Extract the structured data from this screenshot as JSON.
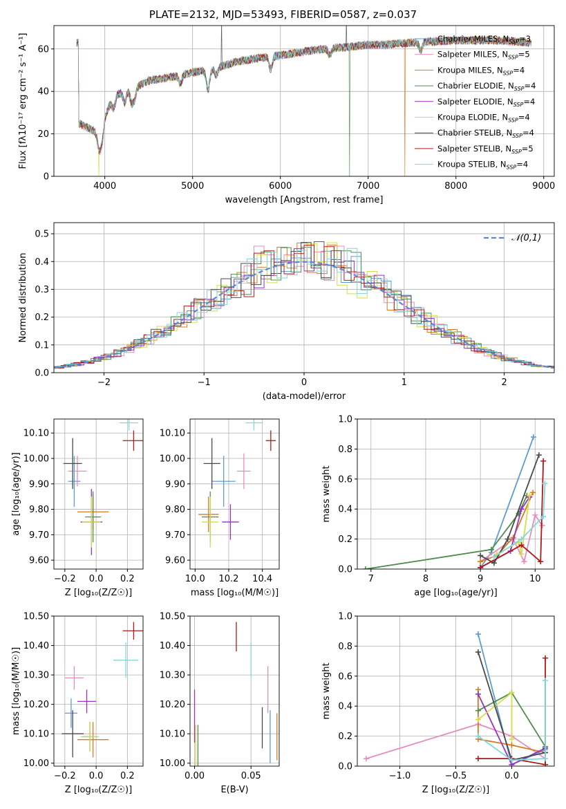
{
  "title": "PLATE=2132, MJD=53493, FIBERID=0587, z=0.037",
  "colors": {
    "Chabrier MILES": "#5b9bd5",
    "Salpeter MILES": "#e88cbf",
    "Kroupa MILES": "#d87a1e",
    "Chabrier ELODIE": "#4e8c4e",
    "Salpeter ELODIE": "#9a2fc4",
    "Kroupa ELODIE": "#d4dc4a",
    "Chabrier STELIB": "#4a4a4a",
    "Salpeter STELIB": "#b01818",
    "Kroupa STELIB": "#7fd8dc"
  },
  "models": [
    {
      "name": "Chabrier MILES",
      "nssp": "3"
    },
    {
      "name": "Salpeter MILES",
      "nssp": "5"
    },
    {
      "name": "Kroupa MILES",
      "nssp": "4"
    },
    {
      "name": "Chabrier ELODIE",
      "nssp": "4"
    },
    {
      "name": "Salpeter ELODIE",
      "nssp": "4"
    },
    {
      "name": "Kroupa ELODIE",
      "nssp": "4"
    },
    {
      "name": "Chabrier STELIB",
      "nssp": "4"
    },
    {
      "name": "Salpeter STELIB",
      "nssp": "5"
    },
    {
      "name": "Kroupa STELIB",
      "nssp": "4"
    }
  ],
  "chart_data": [
    {
      "id": "spectrum",
      "type": "line",
      "xlabel": "wavelength [Angstrom, rest frame]",
      "ylabel": "Flux [fλ10⁻¹⁷ erg cm⁻² s⁻¹ A⁻¹]",
      "xlim": [
        3420,
        9120
      ],
      "ylim": [
        0,
        71
      ],
      "xticks": [
        4000,
        5000,
        6000,
        7000,
        8000,
        9000
      ],
      "yticks": [
        0,
        20,
        40,
        60
      ],
      "continuum": [
        [
          3700,
          25
        ],
        [
          3900,
          21
        ],
        [
          4000,
          28
        ],
        [
          4100,
          38
        ],
        [
          4300,
          41
        ],
        [
          4500,
          45
        ],
        [
          4800,
          47
        ],
        [
          5000,
          49
        ],
        [
          5200,
          50
        ],
        [
          5500,
          54
        ],
        [
          5800,
          56
        ],
        [
          6000,
          57
        ],
        [
          6300,
          59
        ],
        [
          6500,
          60
        ],
        [
          6800,
          61
        ],
        [
          7000,
          62
        ],
        [
          7200,
          62
        ],
        [
          7500,
          63
        ],
        [
          8000,
          64
        ],
        [
          8500,
          64
        ],
        [
          8850,
          63
        ]
      ],
      "legend_position": "upper right"
    },
    {
      "id": "residuals",
      "type": "line",
      "xlabel": "(data-model)/error",
      "ylabel": "Normed distribution",
      "xlim": [
        -2.5,
        2.5
      ],
      "ylim": [
        0,
        0.54
      ],
      "xticks": [
        -2,
        -1,
        0,
        1,
        2
      ],
      "yticks": [
        0.0,
        0.1,
        0.2,
        0.3,
        0.4,
        0.5
      ],
      "reference": {
        "name": "𝒩(0,1)",
        "mean": 0,
        "sigma": 1
      },
      "legend_position": "upper right"
    },
    {
      "id": "age_vs_Z",
      "type": "scatter",
      "xlabel": "Z [log₁₀(Z/Z☉)]",
      "ylabel": "age  [log₁₀(age/yr)]",
      "xlim": [
        -0.27,
        0.3
      ],
      "ylim": [
        9.565,
        10.155
      ],
      "xticks": [
        -0.2,
        0.0,
        0.2
      ],
      "yticks": [
        9.6,
        9.7,
        9.8,
        9.9,
        10.0,
        10.1
      ],
      "points": [
        {
          "model": "Chabrier MILES",
          "x": -0.14,
          "y": 9.91,
          "xerr": 0.04,
          "yerr": 0.1
        },
        {
          "model": "Salpeter MILES",
          "x": -0.12,
          "y": 9.95,
          "xerr": 0.06,
          "yerr": 0.06
        },
        {
          "model": "Kroupa MILES",
          "x": -0.02,
          "y": 9.79,
          "xerr": 0.1,
          "yerr": 0.07
        },
        {
          "model": "Chabrier ELODIE",
          "x": -0.02,
          "y": 9.77,
          "xerr": 0.05,
          "yerr": 0.1
        },
        {
          "model": "Salpeter ELODIE",
          "x": -0.03,
          "y": 9.75,
          "xerr": 0.07,
          "yerr": 0.13
        },
        {
          "model": "Kroupa ELODIE",
          "x": -0.03,
          "y": 9.75,
          "xerr": 0.06,
          "yerr": 0.1
        },
        {
          "model": "Chabrier STELIB",
          "x": -0.15,
          "y": 9.98,
          "xerr": 0.06,
          "yerr": 0.1
        },
        {
          "model": "Salpeter STELIB",
          "x": 0.24,
          "y": 10.07,
          "xerr": 0.07,
          "yerr": 0.04
        },
        {
          "model": "Kroupa STELIB",
          "x": 0.21,
          "y": 10.14,
          "xerr": 0.06,
          "yerr": 0.03
        }
      ]
    },
    {
      "id": "age_vs_mass",
      "type": "scatter",
      "xlabel": "mass [log₁₀(M/M☉)]",
      "ylabel": "",
      "xlim": [
        9.97,
        10.5
      ],
      "ylim": [
        9.565,
        10.155
      ],
      "xticks": [
        10.0,
        10.2,
        10.4
      ],
      "yticks": [
        9.6,
        9.7,
        9.8,
        9.9,
        10.0,
        10.1
      ],
      "points": [
        {
          "model": "Chabrier MILES",
          "x": 10.17,
          "y": 9.91,
          "xerr": 0.07,
          "yerr": 0.1
        },
        {
          "model": "Salpeter MILES",
          "x": 10.29,
          "y": 9.95,
          "xerr": 0.04,
          "yerr": 0.07
        },
        {
          "model": "Kroupa MILES",
          "x": 10.08,
          "y": 9.78,
          "xerr": 0.06,
          "yerr": 0.07
        },
        {
          "model": "Chabrier ELODIE",
          "x": 10.09,
          "y": 9.77,
          "xerr": 0.05,
          "yerr": 0.1
        },
        {
          "model": "Salpeter ELODIE",
          "x": 10.21,
          "y": 9.75,
          "xerr": 0.05,
          "yerr": 0.07
        },
        {
          "model": "Kroupa ELODIE",
          "x": 10.09,
          "y": 9.75,
          "xerr": 0.05,
          "yerr": 0.1
        },
        {
          "model": "Chabrier STELIB",
          "x": 10.1,
          "y": 9.98,
          "xerr": 0.05,
          "yerr": 0.1
        },
        {
          "model": "Salpeter STELIB",
          "x": 10.45,
          "y": 10.07,
          "xerr": 0.03,
          "yerr": 0.04
        },
        {
          "model": "Kroupa STELIB",
          "x": 10.35,
          "y": 10.14,
          "xerr": 0.05,
          "yerr": 0.03
        }
      ]
    },
    {
      "id": "weights_vs_age",
      "type": "line",
      "xlabel": "age  [log₁₀(age/yr)]",
      "ylabel": "mass weight",
      "xlim": [
        6.75,
        10.35
      ],
      "ylim": [
        0,
        1.0
      ],
      "xticks": [
        7,
        8,
        9,
        10
      ],
      "yticks": [
        0.0,
        0.2,
        0.4,
        0.6,
        0.8,
        1.0
      ],
      "series": [
        {
          "model": "Chabrier MILES",
          "x": [
            9.0,
            9.2,
            9.97
          ],
          "y": [
            0.01,
            0.11,
            0.88
          ]
        },
        {
          "model": "Salpeter MILES",
          "x": [
            9.0,
            9.6,
            9.8,
            10.0,
            10.13
          ],
          "y": [
            0.05,
            0.2,
            0.05,
            0.36,
            0.29
          ]
        },
        {
          "model": "Kroupa MILES",
          "x": [
            9.0,
            9.3,
            9.6,
            9.96
          ],
          "y": [
            0.05,
            0.09,
            0.21,
            0.51
          ]
        },
        {
          "model": "Chabrier ELODIE",
          "x": [
            6.9,
            9.2,
            9.7,
            9.85
          ],
          "y": [
            0.0,
            0.13,
            0.37,
            0.49
          ]
        },
        {
          "model": "Salpeter ELODIE",
          "x": [
            9.0,
            9.55,
            9.75,
            9.9
          ],
          "y": [
            0.01,
            0.12,
            0.4,
            0.48
          ]
        },
        {
          "model": "Kroupa ELODIE",
          "x": [
            9.3,
            9.7,
            9.75,
            9.9
          ],
          "y": [
            0.1,
            0.18,
            0.1,
            0.49
          ]
        },
        {
          "model": "Chabrier STELIB",
          "x": [
            9.0,
            9.25,
            9.5,
            10.07
          ],
          "y": [
            0.09,
            0.04,
            0.2,
            0.76
          ]
        },
        {
          "model": "Salpeter STELIB",
          "x": [
            9.0,
            9.75,
            10.1,
            10.15
          ],
          "y": [
            0.01,
            0.16,
            0.05,
            0.72
          ]
        },
        {
          "model": "Kroupa STELIB",
          "x": [
            9.25,
            9.75,
            10.15,
            10.18
          ],
          "y": [
            0.08,
            0.2,
            0.35,
            0.57
          ]
        }
      ]
    },
    {
      "id": "mass_vs_Z",
      "type": "scatter",
      "xlabel": "Z [log₁₀(Z/Z☉)]",
      "ylabel": "mass [log₁₀(M/M☉)]",
      "xlim": [
        -0.27,
        0.3
      ],
      "ylim": [
        9.99,
        10.5
      ],
      "xticks": [
        -0.2,
        0.0,
        0.2
      ],
      "yticks": [
        10.0,
        10.1,
        10.2,
        10.3,
        10.4,
        10.5
      ],
      "points": [
        {
          "model": "Chabrier MILES",
          "x": -0.16,
          "y": 10.17,
          "xerr": 0.04,
          "yerr": 0.05
        },
        {
          "model": "Salpeter MILES",
          "x": -0.14,
          "y": 10.29,
          "xerr": 0.06,
          "yerr": 0.04
        },
        {
          "model": "Kroupa MILES",
          "x": -0.02,
          "y": 10.08,
          "xerr": 0.1,
          "yerr": 0.06
        },
        {
          "model": "Chabrier ELODIE",
          "x": -0.04,
          "y": 10.09,
          "xerr": 0.05,
          "yerr": 0.05
        },
        {
          "model": "Salpeter ELODIE",
          "x": -0.06,
          "y": 10.21,
          "xerr": 0.06,
          "yerr": 0.04
        },
        {
          "model": "Kroupa ELODIE",
          "x": -0.04,
          "y": 10.09,
          "xerr": 0.06,
          "yerr": 0.05
        },
        {
          "model": "Chabrier STELIB",
          "x": -0.15,
          "y": 10.1,
          "xerr": 0.07,
          "yerr": 0.08
        },
        {
          "model": "Salpeter STELIB",
          "x": 0.24,
          "y": 10.45,
          "xerr": 0.07,
          "yerr": 0.03
        },
        {
          "model": "Kroupa STELIB",
          "x": 0.19,
          "y": 10.35,
          "xerr": 0.08,
          "yerr": 0.06
        }
      ]
    },
    {
      "id": "mass_vs_EBV",
      "type": "scatter",
      "xlabel": "E(B-V)",
      "ylabel": "",
      "xlim": [
        -0.004,
        0.075
      ],
      "ylim": [
        9.99,
        10.5
      ],
      "xticks": [
        0.0,
        0.05
      ],
      "yticks": [
        10.0,
        10.1,
        10.2,
        10.3,
        10.4,
        10.5
      ],
      "points": [
        {
          "model": "Chabrier MILES",
          "x": 0.067,
          "y": 10.09,
          "yerr": 0.09
        },
        {
          "model": "Salpeter MILES",
          "x": 0.065,
          "y": 10.25,
          "yerr": 0.08
        },
        {
          "model": "Kroupa MILES",
          "x": 0.073,
          "y": 10.09,
          "yerr": 0.08
        },
        {
          "model": "Chabrier ELODIE",
          "x": 0.003,
          "y": 10.05,
          "yerr": 0.08
        },
        {
          "model": "Salpeter ELODIE",
          "x": 0.0,
          "y": 10.16,
          "yerr": 0.09
        },
        {
          "model": "Kroupa ELODIE",
          "x": 0.001,
          "y": 10.05,
          "yerr": 0.08
        },
        {
          "model": "Chabrier STELIB",
          "x": 0.06,
          "y": 10.12,
          "yerr": 0.07
        },
        {
          "model": "Salpeter STELIB",
          "x": 0.037,
          "y": 10.43,
          "yerr": 0.05
        },
        {
          "model": "Kroupa STELIB",
          "x": 0.05,
          "y": 10.35,
          "yerr": 0.06
        }
      ]
    },
    {
      "id": "weights_vs_Z",
      "type": "line",
      "xlabel": "Z [log₁₀(Z/Z☉)]",
      "ylabel": "mass weight",
      "xlim": [
        -1.38,
        0.38
      ],
      "ylim": [
        0,
        1.0
      ],
      "xticks": [
        -1.0,
        -0.5,
        0.0
      ],
      "yticks": [
        0.0,
        0.2,
        0.4,
        0.6,
        0.8,
        1.0
      ],
      "series": [
        {
          "model": "Chabrier MILES",
          "x": [
            -0.3,
            0.0,
            0.3
          ],
          "y": [
            0.88,
            0.01,
            0.11
          ]
        },
        {
          "model": "Salpeter MILES",
          "x": [
            -1.3,
            -0.3,
            0.0,
            0.3
          ],
          "y": [
            0.05,
            0.28,
            0.2,
            0.05
          ]
        },
        {
          "model": "Kroupa MILES",
          "x": [
            -0.3,
            -0.3,
            0.0,
            0.3
          ],
          "y": [
            0.51,
            0.18,
            0.14,
            0.09
          ]
        },
        {
          "model": "Chabrier ELODIE",
          "x": [
            -0.3,
            0.0,
            0.3
          ],
          "y": [
            0.37,
            0.49,
            0.13
          ]
        },
        {
          "model": "Salpeter ELODIE",
          "x": [
            -0.3,
            0.0,
            0.3
          ],
          "y": [
            0.48,
            0.01,
            0.12
          ]
        },
        {
          "model": "Kroupa ELODIE",
          "x": [
            -0.3,
            0.0,
            0.0
          ],
          "y": [
            0.31,
            0.49,
            0.18
          ]
        },
        {
          "model": "Chabrier STELIB",
          "x": [
            -0.3,
            0.0,
            0.3
          ],
          "y": [
            0.76,
            0.04,
            0.09
          ]
        },
        {
          "model": "Salpeter STELIB",
          "x": [
            -0.3,
            0.0,
            0.3,
            0.3
          ],
          "y": [
            0.05,
            0.05,
            0.01,
            0.72
          ]
        },
        {
          "model": "Kroupa STELIB",
          "x": [
            -0.3,
            0.0,
            0.3,
            0.3
          ],
          "y": [
            0.2,
            0.04,
            0.05,
            0.57
          ]
        }
      ]
    }
  ]
}
